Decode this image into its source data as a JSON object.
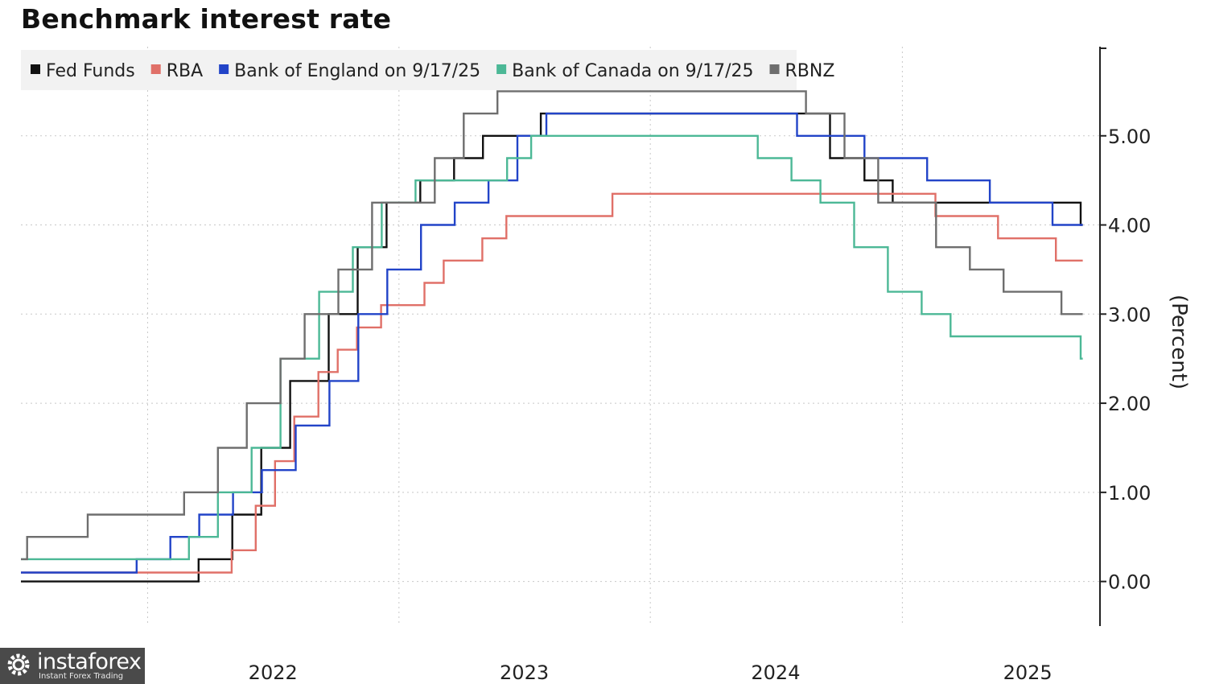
{
  "title": "Benchmark interest rate",
  "chart_data": {
    "type": "line",
    "title": "Benchmark interest rate",
    "ylabel": "(Percent)",
    "ylim": [
      -0.5,
      6.0
    ],
    "y_ticks": [
      0.0,
      1.0,
      2.0,
      3.0,
      4.0,
      5.0
    ],
    "y_tick_labels": [
      "0.00",
      "1.00",
      "2.00",
      "3.00",
      "4.00",
      "5.00"
    ],
    "x_range": [
      "2021-07-01",
      "2025-10-15"
    ],
    "x_tick_labels": [
      {
        "label": "2022",
        "date": "2022-01-01"
      },
      {
        "label": "2023",
        "date": "2023-01-01"
      },
      {
        "label": "2024",
        "date": "2024-01-01"
      },
      {
        "label": "2025",
        "date": "2025-01-01"
      }
    ],
    "grid": true,
    "legend_position": "top-left",
    "step": true,
    "series": [
      {
        "name": "Fed Funds",
        "color": "#111111",
        "points": [
          [
            "2021-07-01",
            0.0
          ],
          [
            "2022-03-16",
            0.25
          ],
          [
            "2022-05-04",
            0.75
          ],
          [
            "2022-06-15",
            1.5
          ],
          [
            "2022-07-27",
            2.25
          ],
          [
            "2022-09-21",
            3.0
          ],
          [
            "2022-11-02",
            3.75
          ],
          [
            "2022-12-14",
            4.25
          ],
          [
            "2023-02-01",
            4.5
          ],
          [
            "2023-03-22",
            4.75
          ],
          [
            "2023-05-03",
            5.0
          ],
          [
            "2023-07-26",
            5.25
          ],
          [
            "2024-09-18",
            4.75
          ],
          [
            "2024-11-07",
            4.5
          ],
          [
            "2024-12-18",
            4.25
          ],
          [
            "2025-09-17",
            4.0
          ],
          [
            "2025-09-20",
            4.0
          ]
        ]
      },
      {
        "name": "RBA",
        "color": "#e07068",
        "points": [
          [
            "2021-07-01",
            0.1
          ],
          [
            "2022-05-03",
            0.35
          ],
          [
            "2022-06-07",
            0.85
          ],
          [
            "2022-07-05",
            1.35
          ],
          [
            "2022-08-02",
            1.85
          ],
          [
            "2022-09-06",
            2.35
          ],
          [
            "2022-10-04",
            2.6
          ],
          [
            "2022-11-01",
            2.85
          ],
          [
            "2022-12-06",
            3.1
          ],
          [
            "2023-02-07",
            3.35
          ],
          [
            "2023-03-07",
            3.6
          ],
          [
            "2023-05-02",
            3.85
          ],
          [
            "2023-06-06",
            4.1
          ],
          [
            "2023-11-07",
            4.35
          ],
          [
            "2025-02-18",
            4.1
          ],
          [
            "2025-05-20",
            3.85
          ],
          [
            "2025-08-12",
            3.6
          ],
          [
            "2025-09-20",
            3.6
          ]
        ]
      },
      {
        "name": "Bank of England on 9/17/25",
        "color": "#2244c8",
        "points": [
          [
            "2021-07-01",
            0.1
          ],
          [
            "2021-12-16",
            0.25
          ],
          [
            "2022-02-03",
            0.5
          ],
          [
            "2022-03-17",
            0.75
          ],
          [
            "2022-05-05",
            1.0
          ],
          [
            "2022-06-16",
            1.25
          ],
          [
            "2022-08-04",
            1.75
          ],
          [
            "2022-09-22",
            2.25
          ],
          [
            "2022-11-03",
            3.0
          ],
          [
            "2022-12-15",
            3.5
          ],
          [
            "2023-02-02",
            4.0
          ],
          [
            "2023-03-23",
            4.25
          ],
          [
            "2023-05-11",
            4.5
          ],
          [
            "2023-06-22",
            5.0
          ],
          [
            "2023-08-03",
            5.25
          ],
          [
            "2024-08-01",
            5.0
          ],
          [
            "2024-11-07",
            4.75
          ],
          [
            "2025-02-06",
            4.5
          ],
          [
            "2025-05-08",
            4.25
          ],
          [
            "2025-08-07",
            4.0
          ],
          [
            "2025-09-20",
            4.0
          ]
        ]
      },
      {
        "name": "Bank of Canada on 9/17/25",
        "color": "#4cb896",
        "points": [
          [
            "2021-07-01",
            0.25
          ],
          [
            "2022-03-02",
            0.5
          ],
          [
            "2022-04-13",
            1.0
          ],
          [
            "2022-06-01",
            1.5
          ],
          [
            "2022-07-13",
            2.5
          ],
          [
            "2022-09-07",
            3.25
          ],
          [
            "2022-10-26",
            3.75
          ],
          [
            "2022-12-07",
            4.25
          ],
          [
            "2023-01-25",
            4.5
          ],
          [
            "2023-06-07",
            4.75
          ],
          [
            "2023-07-12",
            5.0
          ],
          [
            "2024-06-05",
            4.75
          ],
          [
            "2024-07-24",
            4.5
          ],
          [
            "2024-09-04",
            4.25
          ],
          [
            "2024-10-23",
            3.75
          ],
          [
            "2024-12-11",
            3.25
          ],
          [
            "2025-01-29",
            3.0
          ],
          [
            "2025-03-12",
            2.75
          ],
          [
            "2025-09-17",
            2.5
          ],
          [
            "2025-09-20",
            2.5
          ]
        ]
      },
      {
        "name": "RBNZ",
        "color": "#6e6e6e",
        "points": [
          [
            "2021-07-01",
            0.25
          ],
          [
            "2021-07-10",
            0.5
          ],
          [
            "2021-10-06",
            0.75
          ],
          [
            "2021-11-24",
            0.75
          ],
          [
            "2022-02-23",
            1.0
          ],
          [
            "2022-04-13",
            1.5
          ],
          [
            "2022-05-25",
            2.0
          ],
          [
            "2022-07-13",
            2.5
          ],
          [
            "2022-08-17",
            3.0
          ],
          [
            "2022-10-05",
            3.5
          ],
          [
            "2022-11-23",
            4.25
          ],
          [
            "2023-02-22",
            4.75
          ],
          [
            "2023-04-05",
            5.25
          ],
          [
            "2023-05-24",
            5.5
          ],
          [
            "2024-08-14",
            5.25
          ],
          [
            "2024-10-09",
            4.75
          ],
          [
            "2024-11-27",
            4.25
          ],
          [
            "2025-02-19",
            3.75
          ],
          [
            "2025-04-09",
            3.5
          ],
          [
            "2025-05-28",
            3.25
          ],
          [
            "2025-08-20",
            3.0
          ],
          [
            "2025-09-20",
            3.0
          ]
        ]
      }
    ]
  },
  "watermark": {
    "brand": "instaforex",
    "tagline": "Instant Forex Trading"
  }
}
